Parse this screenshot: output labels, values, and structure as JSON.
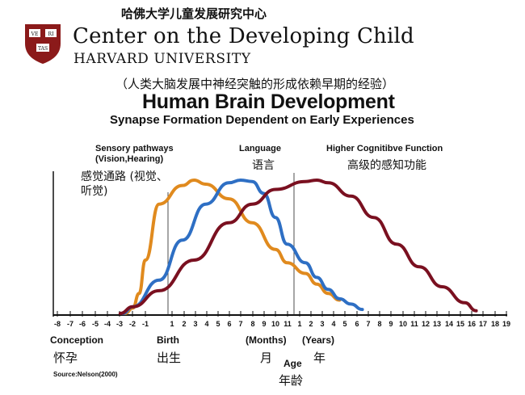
{
  "header": {
    "org_cn": "哈佛大学儿童发展研究中心",
    "center_name": "Center on the Developing Child",
    "university": "HARVARD UNIVERSITY",
    "logo_text": [
      "VE",
      "RI",
      "TAS"
    ],
    "logo_color": "#8b1a1a"
  },
  "chart_data": {
    "type": "line",
    "title": "Human Brain Development",
    "subtitle": "Synapse Formation Dependent on Early Experiences",
    "subtitle_cn": "（人类大脑发展中神经突触的形成依赖早期的经验）",
    "x_tick_labels_prenatal": [
      "-8",
      "-7",
      "-6",
      "-5",
      "-4",
      "-3",
      "-2",
      "-1"
    ],
    "x_tick_labels_months": [
      "1",
      "2",
      "3",
      "4",
      "5",
      "6",
      "7",
      "8",
      "9",
      "10",
      "11"
    ],
    "x_tick_labels_years": [
      "1",
      "2",
      "3",
      "4",
      "5",
      "6",
      "7",
      "8",
      "9",
      "10",
      "11",
      "12",
      "13",
      "14",
      "15",
      "16",
      "17",
      "18",
      "19"
    ],
    "x_axis_labels": {
      "conception_en": "Conception",
      "conception_cn": "怀孕",
      "birth_en": "Birth",
      "birth_cn": "出生",
      "months_en": "(Months)",
      "months_cn": "月",
      "years_en": "(Years)",
      "years_cn": "年",
      "age_en": "Age",
      "age_cn": "年龄"
    },
    "series": [
      {
        "name": "Sensory pathways (Vision,Hearing)",
        "name_cn": "感觉通路 (视觉、听觉)",
        "color": "#e08a1e",
        "points": [
          [
            -2.6,
            0.0
          ],
          [
            -2,
            0.04
          ],
          [
            -1.5,
            0.15
          ],
          [
            -1,
            0.4
          ],
          [
            0,
            0.82
          ],
          [
            2,
            0.96
          ],
          [
            3,
            1.0
          ],
          [
            4,
            0.97
          ],
          [
            6,
            0.86
          ],
          [
            8,
            0.68
          ],
          [
            10,
            0.48
          ],
          [
            11,
            0.38
          ],
          [
            1,
            0.3
          ],
          [
            2,
            0.22
          ],
          [
            3,
            0.15
          ],
          [
            4,
            0.1
          ]
        ]
      },
      {
        "name": "Language",
        "name_cn": "语言",
        "color": "#2e6fc4",
        "points": [
          [
            -2.8,
            0.0
          ],
          [
            -2,
            0.05
          ],
          [
            0,
            0.25
          ],
          [
            2,
            0.55
          ],
          [
            4,
            0.82
          ],
          [
            6,
            0.98
          ],
          [
            7,
            1.0
          ],
          [
            8,
            0.99
          ],
          [
            9,
            0.9
          ],
          [
            10,
            0.72
          ],
          [
            11,
            0.52
          ],
          [
            1,
            0.38
          ],
          [
            2,
            0.27
          ],
          [
            3,
            0.18
          ],
          [
            4,
            0.11
          ],
          [
            5,
            0.07
          ],
          [
            6,
            0.03
          ]
        ]
      },
      {
        "name": "Higher Cognitibve Function",
        "name_cn": "高级的感知功能",
        "color": "#7a1020",
        "points": [
          [
            -3,
            0.0
          ],
          [
            -2,
            0.05
          ],
          [
            0,
            0.17
          ],
          [
            3,
            0.4
          ],
          [
            6,
            0.68
          ],
          [
            8,
            0.82
          ],
          [
            10,
            0.93
          ],
          [
            1,
            0.99
          ],
          [
            2,
            1.0
          ],
          [
            3,
            0.98
          ],
          [
            5,
            0.88
          ],
          [
            7,
            0.72
          ],
          [
            9,
            0.52
          ],
          [
            11,
            0.35
          ],
          [
            13,
            0.2
          ],
          [
            15,
            0.08
          ],
          [
            16,
            0.02
          ]
        ]
      }
    ],
    "grid": false,
    "source": "Source:Nelson(2000)"
  }
}
